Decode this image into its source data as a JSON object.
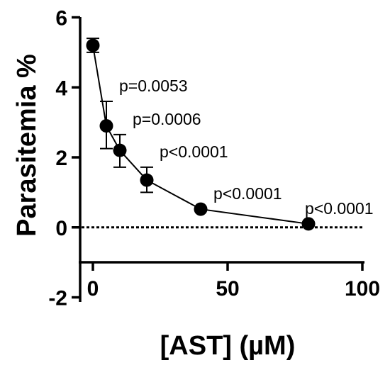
{
  "chart_data": {
    "type": "scatter",
    "xlabel": "[AST] (µM)",
    "ylabel": "Parasitemia %",
    "xlim": [
      0,
      100
    ],
    "ylim": [
      -2,
      6
    ],
    "x_ticks": [
      0,
      50,
      100
    ],
    "y_ticks": [
      -2,
      0,
      2,
      4,
      6
    ],
    "x_tick_labels": [
      "0",
      "50",
      "100"
    ],
    "y_tick_labels": [
      "-2",
      "0",
      "2",
      "4",
      "6"
    ],
    "reference_line": {
      "y": 0,
      "style": "dotted"
    },
    "grid": false,
    "legend": "none",
    "series": [
      {
        "x": [
          0,
          5,
          10,
          20,
          40,
          80
        ],
        "y": [
          5.2,
          2.9,
          2.2,
          1.35,
          0.52,
          0.1
        ],
        "err_upper": [
          5.4,
          3.6,
          2.65,
          1.72,
          0.52,
          0.1
        ],
        "err_lower": [
          5.0,
          2.25,
          1.72,
          1.0,
          0.52,
          0.1
        ],
        "labels": [
          "",
          "p=0.0053",
          "p=0.0006",
          "p<0.0001",
          "p<0.0001",
          "p<0.0001"
        ]
      }
    ]
  }
}
